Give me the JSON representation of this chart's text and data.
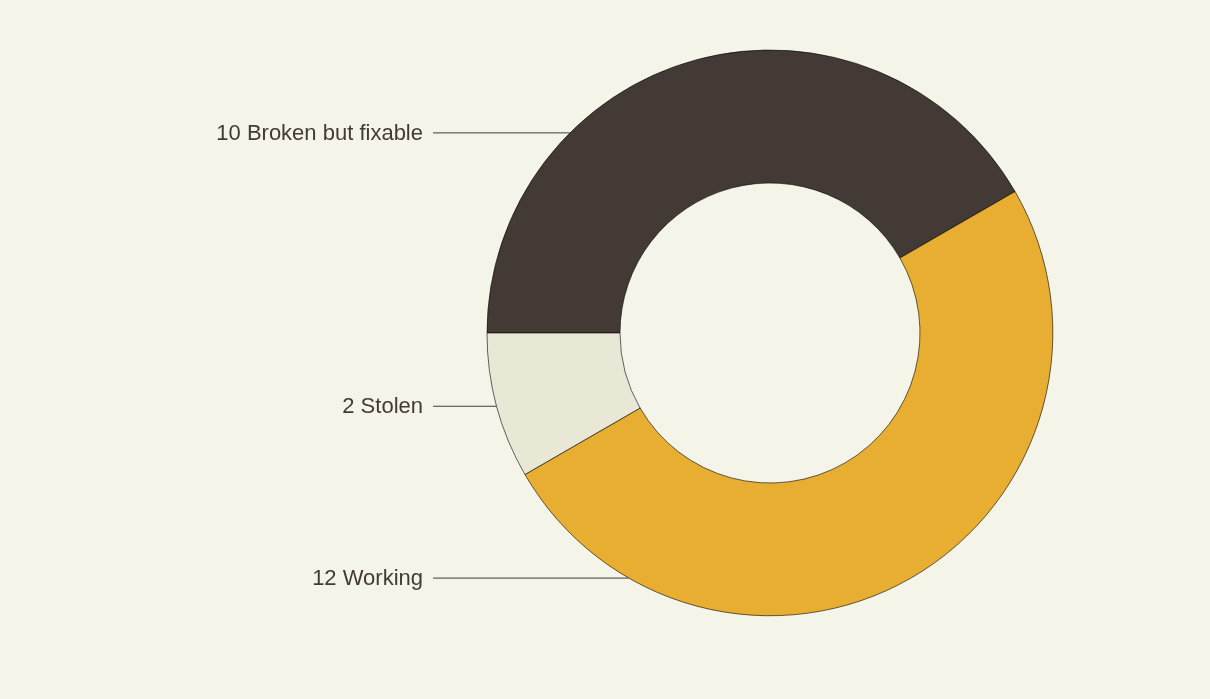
{
  "chart_data": {
    "type": "donut",
    "categories": [
      "10 Broken but fixable",
      "12 Working",
      "2 Stolen"
    ],
    "values": [
      10,
      12,
      2
    ],
    "colors": [
      "#433a35",
      "#e8ae32",
      "#e9e8d6"
    ]
  }
}
